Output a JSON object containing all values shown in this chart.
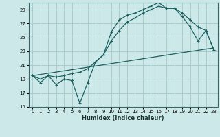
{
  "xlabel": "Humidex (Indice chaleur)",
  "background_color": "#cde8e8",
  "grid_color": "#aacccc",
  "line_color": "#1a6060",
  "xlim": [
    -0.5,
    23.5
  ],
  "ylim": [
    15,
    30
  ],
  "yticks": [
    15,
    17,
    19,
    21,
    23,
    25,
    27,
    29
  ],
  "xticks": [
    0,
    1,
    2,
    3,
    4,
    5,
    6,
    7,
    8,
    9,
    10,
    11,
    12,
    13,
    14,
    15,
    16,
    17,
    18,
    19,
    20,
    21,
    22,
    23
  ],
  "line1_x": [
    0,
    1,
    2,
    3,
    4,
    5,
    6,
    7,
    8,
    9,
    10,
    11,
    12,
    13,
    14,
    15,
    16,
    17,
    18,
    19,
    20,
    21,
    22,
    23
  ],
  "line1_y": [
    19.5,
    18.5,
    19.5,
    18.2,
    19.0,
    18.8,
    15.5,
    18.5,
    21.5,
    22.5,
    25.8,
    27.5,
    28.2,
    28.5,
    29.0,
    29.5,
    30.0,
    29.2,
    29.2,
    28.0,
    26.5,
    24.5,
    26.0,
    23.2
  ],
  "line2_x": [
    0,
    23
  ],
  "line2_y": [
    19.5,
    23.5
  ],
  "line3_x": [
    0,
    1,
    2,
    3,
    4,
    5,
    6,
    7,
    8,
    9,
    10,
    11,
    12,
    13,
    14,
    15,
    16,
    17,
    18,
    19,
    20,
    21,
    22,
    23
  ],
  "line3_y": [
    19.5,
    19.0,
    19.5,
    19.3,
    19.5,
    19.8,
    20.0,
    20.5,
    21.5,
    22.5,
    24.5,
    26.0,
    27.2,
    27.8,
    28.5,
    29.0,
    29.5,
    29.2,
    29.2,
    28.5,
    27.5,
    26.5,
    26.0,
    23.2
  ]
}
